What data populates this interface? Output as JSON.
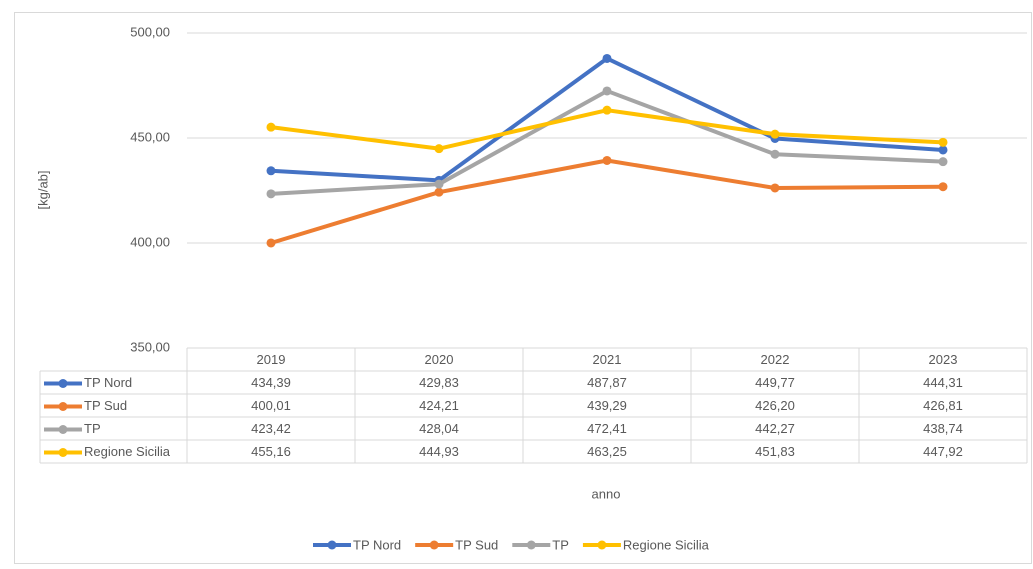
{
  "chart_data": {
    "type": "line",
    "x_label": "anno",
    "y_label": "[kg/ab]",
    "categories": [
      "2019",
      "2020",
      "2021",
      "2022",
      "2023"
    ],
    "series": [
      {
        "name": "TP Nord",
        "color": "#4472c4",
        "values": [
          434.39,
          429.83,
          487.87,
          449.77,
          444.31
        ],
        "value_labels": [
          "434,39",
          "429,83",
          "487,87",
          "449,77",
          "444,31"
        ]
      },
      {
        "name": "TP Sud",
        "color": "#ed7d31",
        "values": [
          400.01,
          424.21,
          439.29,
          426.2,
          426.81
        ],
        "value_labels": [
          "400,01",
          "424,21",
          "439,29",
          "426,20",
          "426,81"
        ]
      },
      {
        "name": "TP",
        "color": "#a5a5a5",
        "values": [
          423.42,
          428.04,
          472.41,
          442.27,
          438.74
        ],
        "value_labels": [
          "423,42",
          "428,04",
          "472,41",
          "442,27",
          "438,74"
        ]
      },
      {
        "name": "Regione Sicilia",
        "color": "#ffc000",
        "values": [
          455.16,
          444.93,
          463.25,
          451.83,
          447.92
        ],
        "value_labels": [
          "455,16",
          "444,93",
          "463,25",
          "451,83",
          "447,92"
        ]
      }
    ],
    "ylim": [
      350,
      500
    ],
    "yticks": [
      {
        "value": 350,
        "label": "350,00"
      },
      {
        "value": 400,
        "label": "400,00"
      },
      {
        "value": 450,
        "label": "450,00"
      },
      {
        "value": 500,
        "label": "500,00"
      }
    ],
    "grid": true,
    "legend": "bottom"
  }
}
